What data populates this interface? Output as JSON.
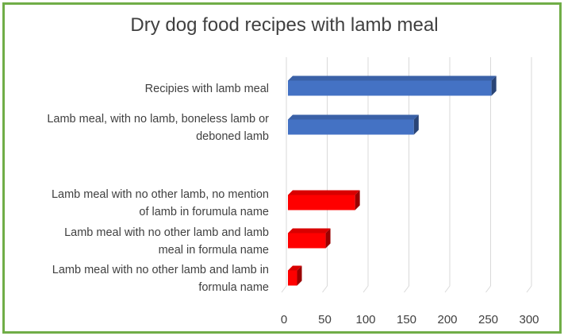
{
  "chart_data": {
    "type": "bar",
    "orientation": "horizontal",
    "style": "3d",
    "title": "Dry dog food recipes with lamb meal",
    "categories": [
      [
        "Recipies with lamb meal"
      ],
      [
        "Lamb meal, with no lamb, boneless lamb or",
        "deboned lamb"
      ],
      [],
      [
        "Lamb meal with no other lamb, no mention",
        "of lamb in forumula name"
      ],
      [
        "Lamb meal with no other lamb and lamb",
        "meal in formula name"
      ],
      [
        "Lamb meal with no other lamb and lamb in",
        "formula name"
      ]
    ],
    "values": [
      255,
      160,
      null,
      88,
      52,
      17
    ],
    "colors": [
      "#4472c4",
      "#4472c4",
      null,
      "#ff0000",
      "#ff0000",
      "#ff0000"
    ],
    "xlim": [
      0,
      300
    ],
    "ticks": [
      0,
      50,
      100,
      150,
      200,
      250,
      300
    ],
    "grid": true,
    "legend": "none"
  },
  "accent_border_color": "#70ad47"
}
